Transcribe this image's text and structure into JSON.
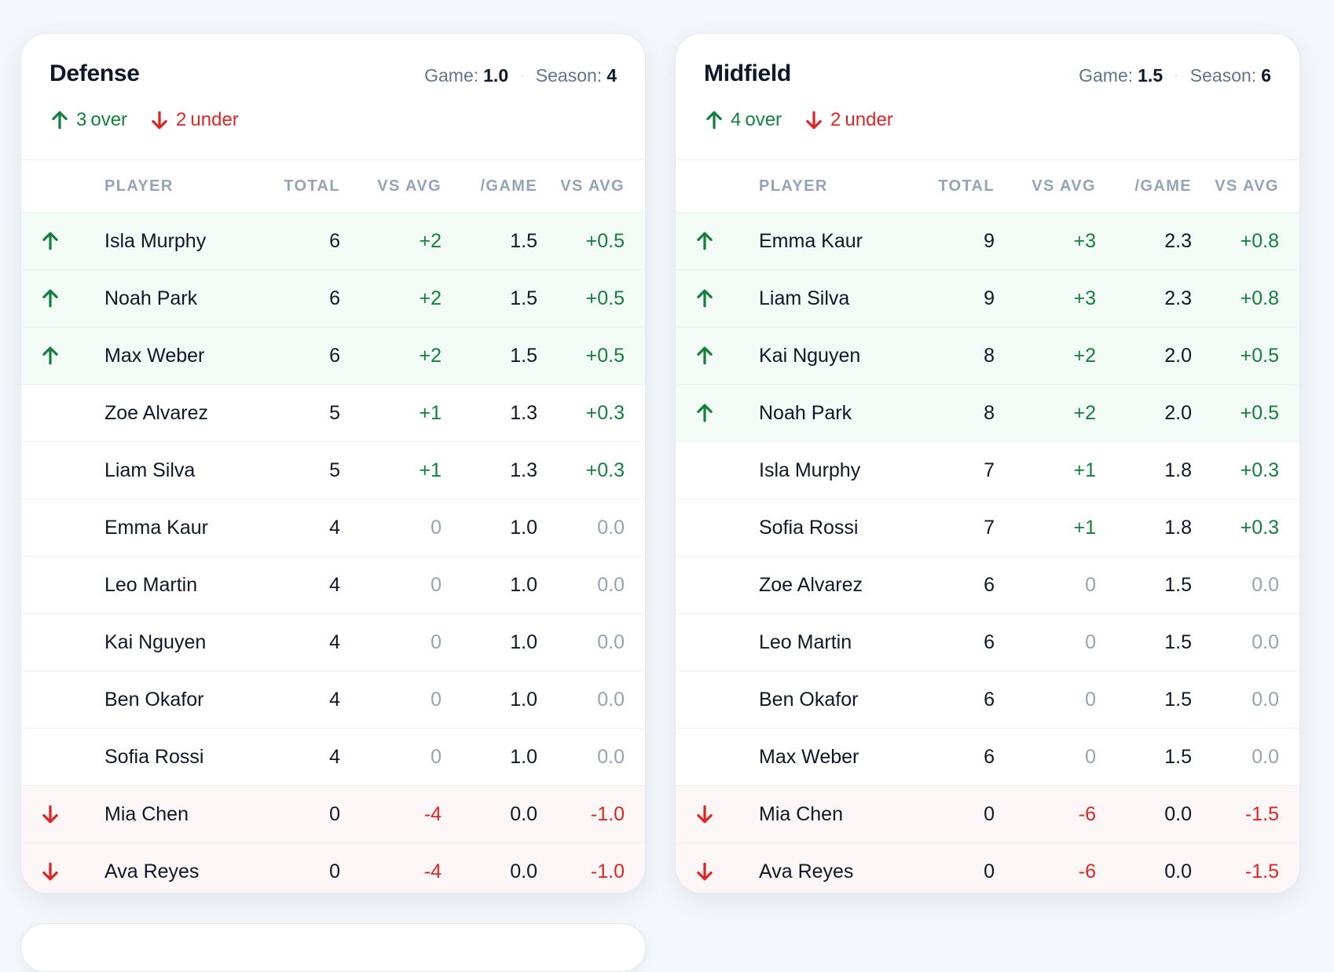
{
  "colors": {
    "positive": "#15803d",
    "negative": "#dc2626",
    "neutral": "#94a3b8",
    "over_row_bg": "#f3fbf7",
    "under_row_bg": "#fdf6f6"
  },
  "columns": [
    "PLAYER",
    "TOTAL",
    "VS AVG",
    "/GAME",
    "VS AVG"
  ],
  "cards": [
    {
      "title": "Defense",
      "game_label": "Game:",
      "game_value": "1.0",
      "season_label": "Season:",
      "season_value": "4",
      "over_count": "3",
      "over_label": "over",
      "under_count": "2",
      "under_label": "under",
      "rows": [
        {
          "trend": "up",
          "player": "Isla Murphy",
          "total": "6",
          "vs_avg": "+2",
          "per_game": "1.5",
          "vs_avg_game": "+0.5"
        },
        {
          "trend": "up",
          "player": "Noah Park",
          "total": "6",
          "vs_avg": "+2",
          "per_game": "1.5",
          "vs_avg_game": "+0.5"
        },
        {
          "trend": "up",
          "player": "Max Weber",
          "total": "6",
          "vs_avg": "+2",
          "per_game": "1.5",
          "vs_avg_game": "+0.5"
        },
        {
          "trend": "none",
          "player": "Zoe Alvarez",
          "total": "5",
          "vs_avg": "+1",
          "per_game": "1.3",
          "vs_avg_game": "+0.3"
        },
        {
          "trend": "none",
          "player": "Liam Silva",
          "total": "5",
          "vs_avg": "+1",
          "per_game": "1.3",
          "vs_avg_game": "+0.3"
        },
        {
          "trend": "none",
          "player": "Emma Kaur",
          "total": "4",
          "vs_avg": "0",
          "per_game": "1.0",
          "vs_avg_game": "0.0"
        },
        {
          "trend": "none",
          "player": "Leo Martin",
          "total": "4",
          "vs_avg": "0",
          "per_game": "1.0",
          "vs_avg_game": "0.0"
        },
        {
          "trend": "none",
          "player": "Kai Nguyen",
          "total": "4",
          "vs_avg": "0",
          "per_game": "1.0",
          "vs_avg_game": "0.0"
        },
        {
          "trend": "none",
          "player": "Ben Okafor",
          "total": "4",
          "vs_avg": "0",
          "per_game": "1.0",
          "vs_avg_game": "0.0"
        },
        {
          "trend": "none",
          "player": "Sofia Rossi",
          "total": "4",
          "vs_avg": "0",
          "per_game": "1.0",
          "vs_avg_game": "0.0"
        },
        {
          "trend": "down",
          "player": "Mia Chen",
          "total": "0",
          "vs_avg": "-4",
          "per_game": "0.0",
          "vs_avg_game": "-1.0"
        },
        {
          "trend": "down",
          "player": "Ava Reyes",
          "total": "0",
          "vs_avg": "-4",
          "per_game": "0.0",
          "vs_avg_game": "-1.0"
        }
      ]
    },
    {
      "title": "Midfield",
      "game_label": "Game:",
      "game_value": "1.5",
      "season_label": "Season:",
      "season_value": "6",
      "over_count": "4",
      "over_label": "over",
      "under_count": "2",
      "under_label": "under",
      "rows": [
        {
          "trend": "up",
          "player": "Emma Kaur",
          "total": "9",
          "vs_avg": "+3",
          "per_game": "2.3",
          "vs_avg_game": "+0.8"
        },
        {
          "trend": "up",
          "player": "Liam Silva",
          "total": "9",
          "vs_avg": "+3",
          "per_game": "2.3",
          "vs_avg_game": "+0.8"
        },
        {
          "trend": "up",
          "player": "Kai Nguyen",
          "total": "8",
          "vs_avg": "+2",
          "per_game": "2.0",
          "vs_avg_game": "+0.5"
        },
        {
          "trend": "up",
          "player": "Noah Park",
          "total": "8",
          "vs_avg": "+2",
          "per_game": "2.0",
          "vs_avg_game": "+0.5"
        },
        {
          "trend": "none",
          "player": "Isla Murphy",
          "total": "7",
          "vs_avg": "+1",
          "per_game": "1.8",
          "vs_avg_game": "+0.3"
        },
        {
          "trend": "none",
          "player": "Sofia Rossi",
          "total": "7",
          "vs_avg": "+1",
          "per_game": "1.8",
          "vs_avg_game": "+0.3"
        },
        {
          "trend": "none",
          "player": "Zoe Alvarez",
          "total": "6",
          "vs_avg": "0",
          "per_game": "1.5",
          "vs_avg_game": "0.0"
        },
        {
          "trend": "none",
          "player": "Leo Martin",
          "total": "6",
          "vs_avg": "0",
          "per_game": "1.5",
          "vs_avg_game": "0.0"
        },
        {
          "trend": "none",
          "player": "Ben Okafor",
          "total": "6",
          "vs_avg": "0",
          "per_game": "1.5",
          "vs_avg_game": "0.0"
        },
        {
          "trend": "none",
          "player": "Max Weber",
          "total": "6",
          "vs_avg": "0",
          "per_game": "1.5",
          "vs_avg_game": "0.0"
        },
        {
          "trend": "down",
          "player": "Mia Chen",
          "total": "0",
          "vs_avg": "-6",
          "per_game": "0.0",
          "vs_avg_game": "-1.5"
        },
        {
          "trend": "down",
          "player": "Ava Reyes",
          "total": "0",
          "vs_avg": "-6",
          "per_game": "0.0",
          "vs_avg_game": "-1.5"
        }
      ]
    }
  ]
}
